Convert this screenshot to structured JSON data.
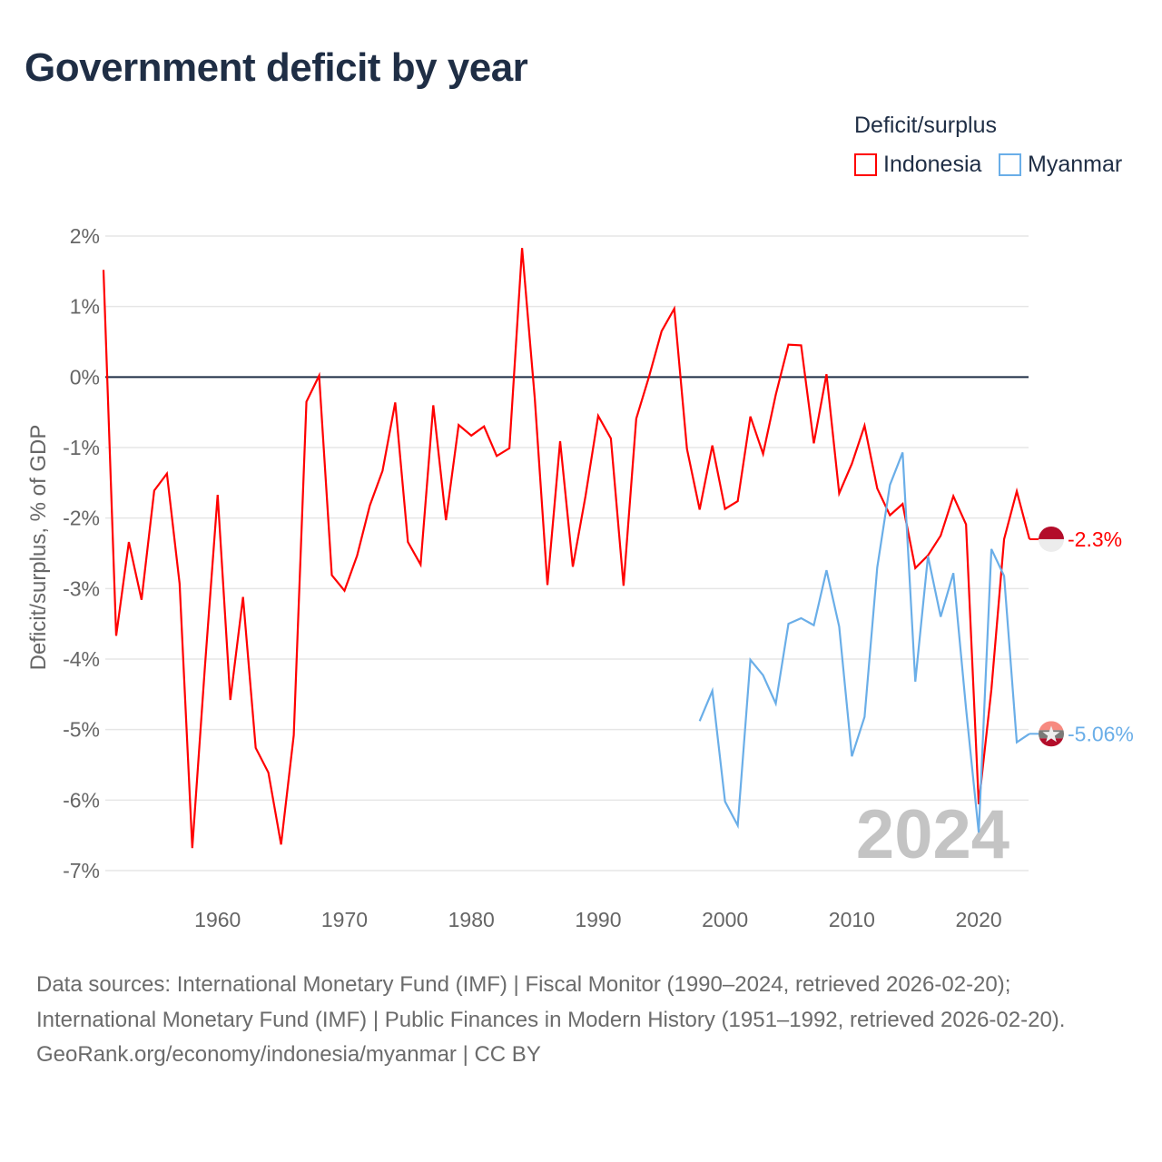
{
  "title": "Government deficit by year",
  "legend": {
    "title": "Deficit/surplus",
    "items": [
      {
        "label": "Indonesia",
        "color": "#ff0000"
      },
      {
        "label": "Myanmar",
        "color": "#6aaee8"
      }
    ]
  },
  "chart_data": {
    "type": "line",
    "title": "Government deficit by year",
    "xlabel": "",
    "ylabel": "Deficit/surplus, % of GDP",
    "xlim": [
      1951,
      2024
    ],
    "ylim": [
      -7,
      2
    ],
    "x_ticks": [
      1960,
      1970,
      1980,
      1990,
      2000,
      2010,
      2020
    ],
    "x_tick_labels": [
      "1960",
      "1970",
      "1980",
      "1990",
      "2000",
      "2010",
      "2020"
    ],
    "y_ticks": [
      2,
      1,
      0,
      -1,
      -2,
      -3,
      -4,
      -5,
      -6,
      -7
    ],
    "y_tick_labels": [
      "2%",
      "1%",
      "0%",
      "-1%",
      "-2%",
      "-3%",
      "-4%",
      "-5%",
      "-6%",
      "-7%"
    ],
    "grid": true,
    "legend_position": "top-right",
    "year_watermark": "2024",
    "series": [
      {
        "name": "Indonesia",
        "color": "#ff0000",
        "end_label": "-2.3%",
        "start_year": 1951,
        "values": [
          1.52,
          -3.67,
          -2.34,
          -3.16,
          -1.61,
          -1.37,
          -2.93,
          -6.68,
          -4.1,
          -1.67,
          -4.58,
          -3.12,
          -5.26,
          -5.61,
          -6.63,
          -5.08,
          -0.35,
          0.02,
          -2.81,
          -3.03,
          -2.53,
          -1.82,
          -1.33,
          -0.36,
          -2.34,
          -2.66,
          -0.4,
          -2.03,
          -0.68,
          -0.83,
          -0.7,
          -1.12,
          -1.01,
          1.83,
          -0.3,
          -2.95,
          -0.91,
          -2.69,
          -1.69,
          -0.55,
          -0.87,
          -2.96,
          -0.59,
          0.0,
          0.65,
          0.97,
          -1.02,
          -1.88,
          -0.97,
          -1.87,
          -1.76,
          -0.56,
          -1.09,
          -0.25,
          0.46,
          0.45,
          -0.94,
          0.04,
          -1.65,
          -1.23,
          -0.69,
          -1.58,
          -1.96,
          -1.8,
          -2.71,
          -2.53,
          -2.25,
          -1.69,
          -2.09,
          -6.06,
          -4.43,
          -2.3,
          -1.62,
          -2.3
        ]
      },
      {
        "name": "Myanmar",
        "color": "#6aaee8",
        "end_label": "-5.06%",
        "start_year": 1998,
        "values": [
          -4.88,
          -4.45,
          -6.02,
          -6.36,
          -4.01,
          -4.23,
          -4.63,
          -3.5,
          -3.42,
          -3.52,
          -2.74,
          -3.54,
          -5.38,
          -4.82,
          -2.7,
          -1.53,
          -1.07,
          -4.32,
          -2.54,
          -3.4,
          -2.78,
          -4.7,
          -6.46,
          -2.44,
          -2.82,
          -5.18,
          -5.06
        ]
      }
    ]
  },
  "footer": {
    "sources": "Data sources: International Monetary Fund (IMF) | Fiscal Monitor (1990–2024, retrieved 2026-02-20); International Monetary Fund (IMF) | Public Finances in Modern History (1951–1992, retrieved 2026-02-20).",
    "credit": "GeoRank.org/economy/indonesia/myanmar | CC BY"
  }
}
